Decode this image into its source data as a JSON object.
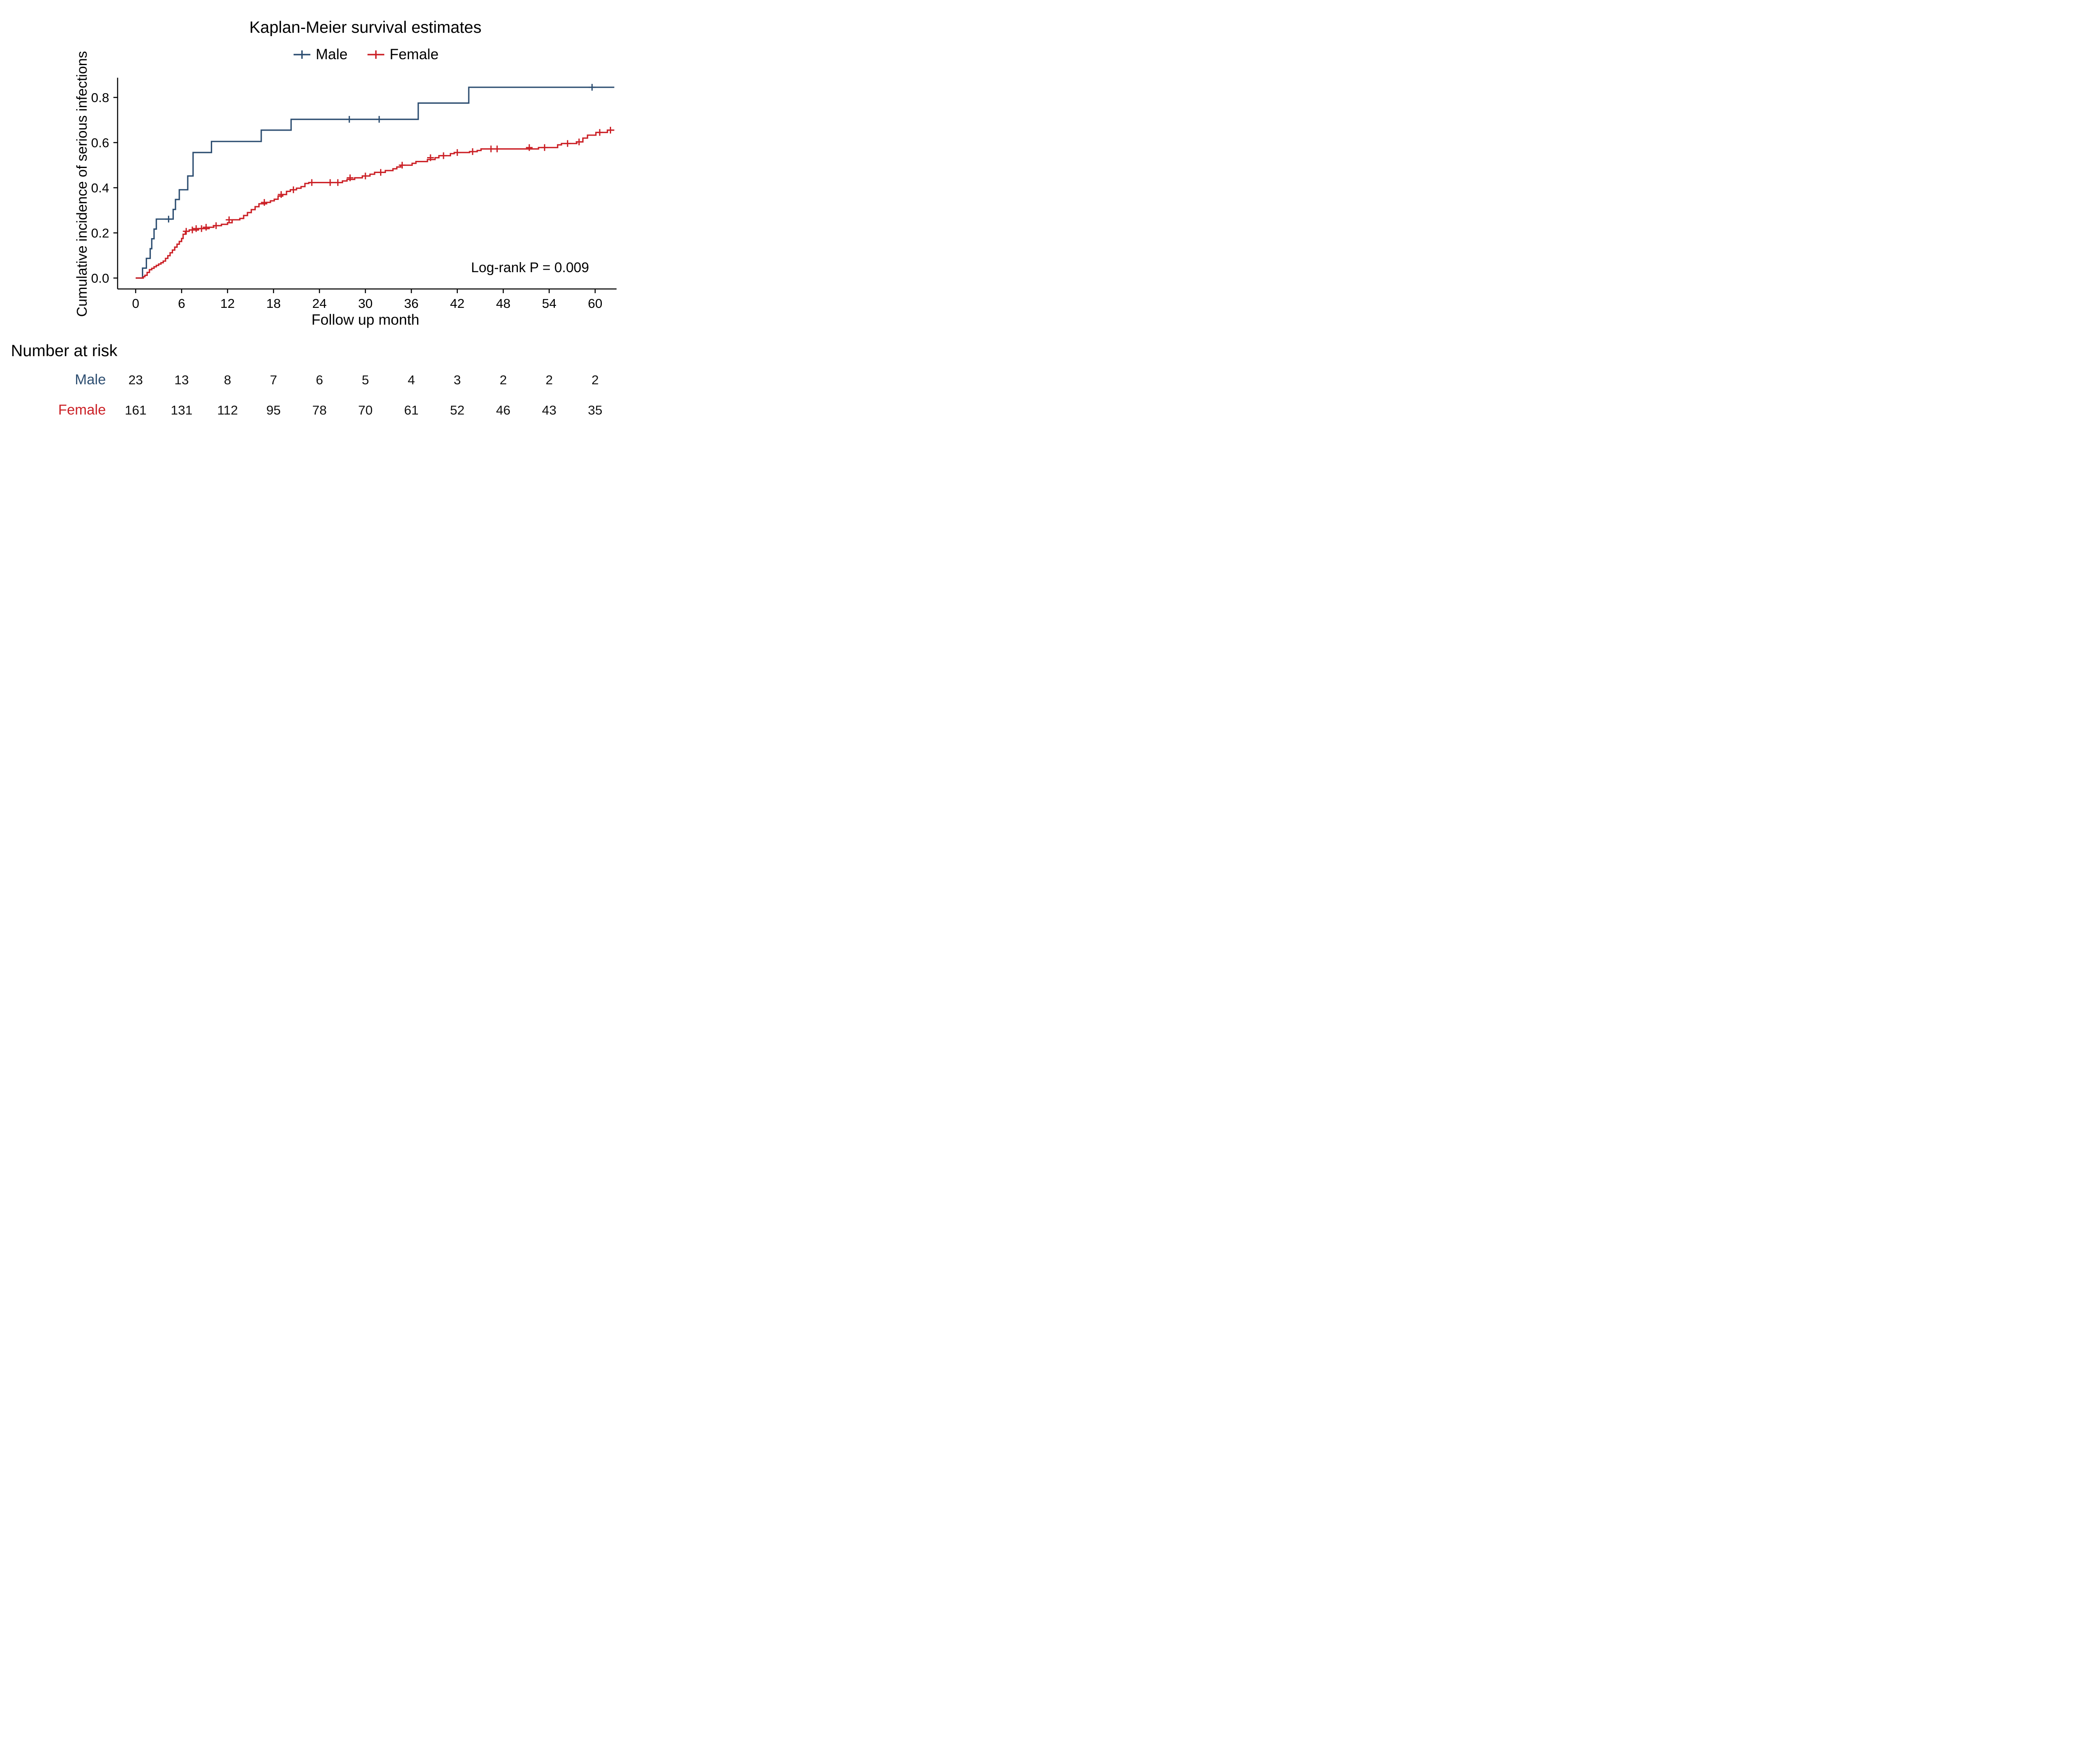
{
  "chart_data": {
    "type": "line",
    "subtype": "kaplan-meier-step",
    "title": "Kaplan-Meier survival estimates",
    "xlabel": "Follow up month",
    "ylabel": "Cumulative incidence of serious infections",
    "annotation": "Log-rank P = 0.009",
    "xlim": [
      0,
      62.5
    ],
    "ylim": [
      0,
      0.88
    ],
    "xticks": [
      0,
      6,
      12,
      18,
      24,
      30,
      36,
      42,
      48,
      54,
      60
    ],
    "ytick_values": [
      0,
      0.2,
      0.4,
      0.6,
      0.8
    ],
    "ytick_labels": [
      "0.0",
      "0.2",
      "0.4",
      "0.6",
      "0.8"
    ],
    "grid": false,
    "legend_position": "top",
    "series": [
      {
        "name": "Male",
        "color": "#2c4d70",
        "steps": [
          [
            0,
            0
          ],
          [
            0.9,
            0.044
          ],
          [
            1.4,
            0.087
          ],
          [
            1.9,
            0.13
          ],
          [
            2.1,
            0.174
          ],
          [
            2.4,
            0.217
          ],
          [
            2.7,
            0.261
          ],
          [
            4.9,
            0.304
          ],
          [
            5.2,
            0.348
          ],
          [
            5.7,
            0.391
          ],
          [
            6.8,
            0.452
          ],
          [
            7.5,
            0.556
          ],
          [
            9.9,
            0.605
          ],
          [
            16.4,
            0.655
          ],
          [
            20.3,
            0.703
          ],
          [
            36.9,
            0.775
          ],
          [
            43.5,
            0.845
          ],
          [
            62.5,
            0.845
          ]
        ],
        "censor_marks": [
          [
            4.3,
            0.261
          ],
          [
            27.9,
            0.703
          ],
          [
            31.8,
            0.703
          ],
          [
            59.6,
            0.845
          ]
        ]
      },
      {
        "name": "Female",
        "color": "#cb2026",
        "steps": [
          [
            0,
            0
          ],
          [
            1.0,
            0.006
          ],
          [
            1.2,
            0.012
          ],
          [
            1.5,
            0.025
          ],
          [
            1.8,
            0.037
          ],
          [
            2.1,
            0.043
          ],
          [
            2.4,
            0.05
          ],
          [
            2.7,
            0.056
          ],
          [
            3.0,
            0.062
          ],
          [
            3.3,
            0.068
          ],
          [
            3.6,
            0.075
          ],
          [
            3.9,
            0.087
          ],
          [
            4.2,
            0.099
          ],
          [
            4.5,
            0.112
          ],
          [
            4.8,
            0.124
          ],
          [
            5.1,
            0.137
          ],
          [
            5.4,
            0.15
          ],
          [
            5.7,
            0.162
          ],
          [
            6.0,
            0.175
          ],
          [
            6.2,
            0.194
          ],
          [
            6.5,
            0.207
          ],
          [
            7.0,
            0.213
          ],
          [
            8.2,
            0.219
          ],
          [
            9.6,
            0.225
          ],
          [
            10.2,
            0.232
          ],
          [
            11.2,
            0.238
          ],
          [
            12.0,
            0.245
          ],
          [
            12.6,
            0.258
          ],
          [
            13.6,
            0.264
          ],
          [
            14.1,
            0.277
          ],
          [
            14.6,
            0.29
          ],
          [
            15.1,
            0.303
          ],
          [
            15.6,
            0.316
          ],
          [
            16.1,
            0.329
          ],
          [
            17.1,
            0.335
          ],
          [
            17.6,
            0.342
          ],
          [
            18.1,
            0.349
          ],
          [
            18.6,
            0.363
          ],
          [
            19.2,
            0.37
          ],
          [
            19.7,
            0.384
          ],
          [
            20.2,
            0.391
          ],
          [
            21.0,
            0.398
          ],
          [
            21.6,
            0.405
          ],
          [
            22.1,
            0.419
          ],
          [
            22.6,
            0.423
          ],
          [
            27.0,
            0.43
          ],
          [
            27.6,
            0.437
          ],
          [
            28.6,
            0.444
          ],
          [
            29.6,
            0.452
          ],
          [
            30.6,
            0.46
          ],
          [
            31.2,
            0.468
          ],
          [
            32.6,
            0.476
          ],
          [
            33.6,
            0.484
          ],
          [
            34.1,
            0.492
          ],
          [
            34.6,
            0.5
          ],
          [
            36.1,
            0.508
          ],
          [
            36.6,
            0.516
          ],
          [
            38.1,
            0.525
          ],
          [
            39.1,
            0.533
          ],
          [
            39.6,
            0.542
          ],
          [
            41.1,
            0.551
          ],
          [
            41.6,
            0.556
          ],
          [
            43.6,
            0.56
          ],
          [
            44.6,
            0.565
          ],
          [
            45.1,
            0.572
          ],
          [
            52.6,
            0.578
          ],
          [
            55.1,
            0.59
          ],
          [
            55.6,
            0.596
          ],
          [
            57.6,
            0.603
          ],
          [
            58.4,
            0.62
          ],
          [
            59.0,
            0.633
          ],
          [
            60.1,
            0.645
          ],
          [
            61.6,
            0.655
          ],
          [
            62.5,
            0.655
          ]
        ],
        "censor_marks": [
          [
            6.6,
            0.207
          ],
          [
            7.4,
            0.213
          ],
          [
            7.9,
            0.219
          ],
          [
            8.6,
            0.219
          ],
          [
            9.2,
            0.225
          ],
          [
            10.5,
            0.232
          ],
          [
            12.2,
            0.258
          ],
          [
            16.8,
            0.335
          ],
          [
            19.0,
            0.37
          ],
          [
            20.6,
            0.391
          ],
          [
            23.0,
            0.423
          ],
          [
            25.4,
            0.423
          ],
          [
            26.4,
            0.423
          ],
          [
            28.0,
            0.444
          ],
          [
            30.0,
            0.452
          ],
          [
            32.0,
            0.468
          ],
          [
            34.8,
            0.5
          ],
          [
            38.5,
            0.533
          ],
          [
            40.2,
            0.542
          ],
          [
            42.0,
            0.556
          ],
          [
            44.0,
            0.56
          ],
          [
            46.4,
            0.572
          ],
          [
            47.2,
            0.572
          ],
          [
            51.4,
            0.578
          ],
          [
            53.4,
            0.578
          ],
          [
            56.4,
            0.596
          ],
          [
            57.9,
            0.603
          ],
          [
            60.6,
            0.645
          ],
          [
            62.0,
            0.655
          ]
        ]
      }
    ]
  },
  "risk_table": {
    "title": "Number at risk",
    "months": [
      0,
      6,
      12,
      18,
      24,
      30,
      36,
      42,
      48,
      54,
      60
    ],
    "rows": [
      {
        "name": "Male",
        "color": "#2c4d70",
        "counts": [
          23,
          13,
          8,
          7,
          6,
          5,
          4,
          3,
          2,
          2,
          2
        ]
      },
      {
        "name": "Female",
        "color": "#cb2026",
        "counts": [
          161,
          131,
          112,
          95,
          78,
          70,
          61,
          52,
          46,
          43,
          35
        ]
      }
    ]
  }
}
